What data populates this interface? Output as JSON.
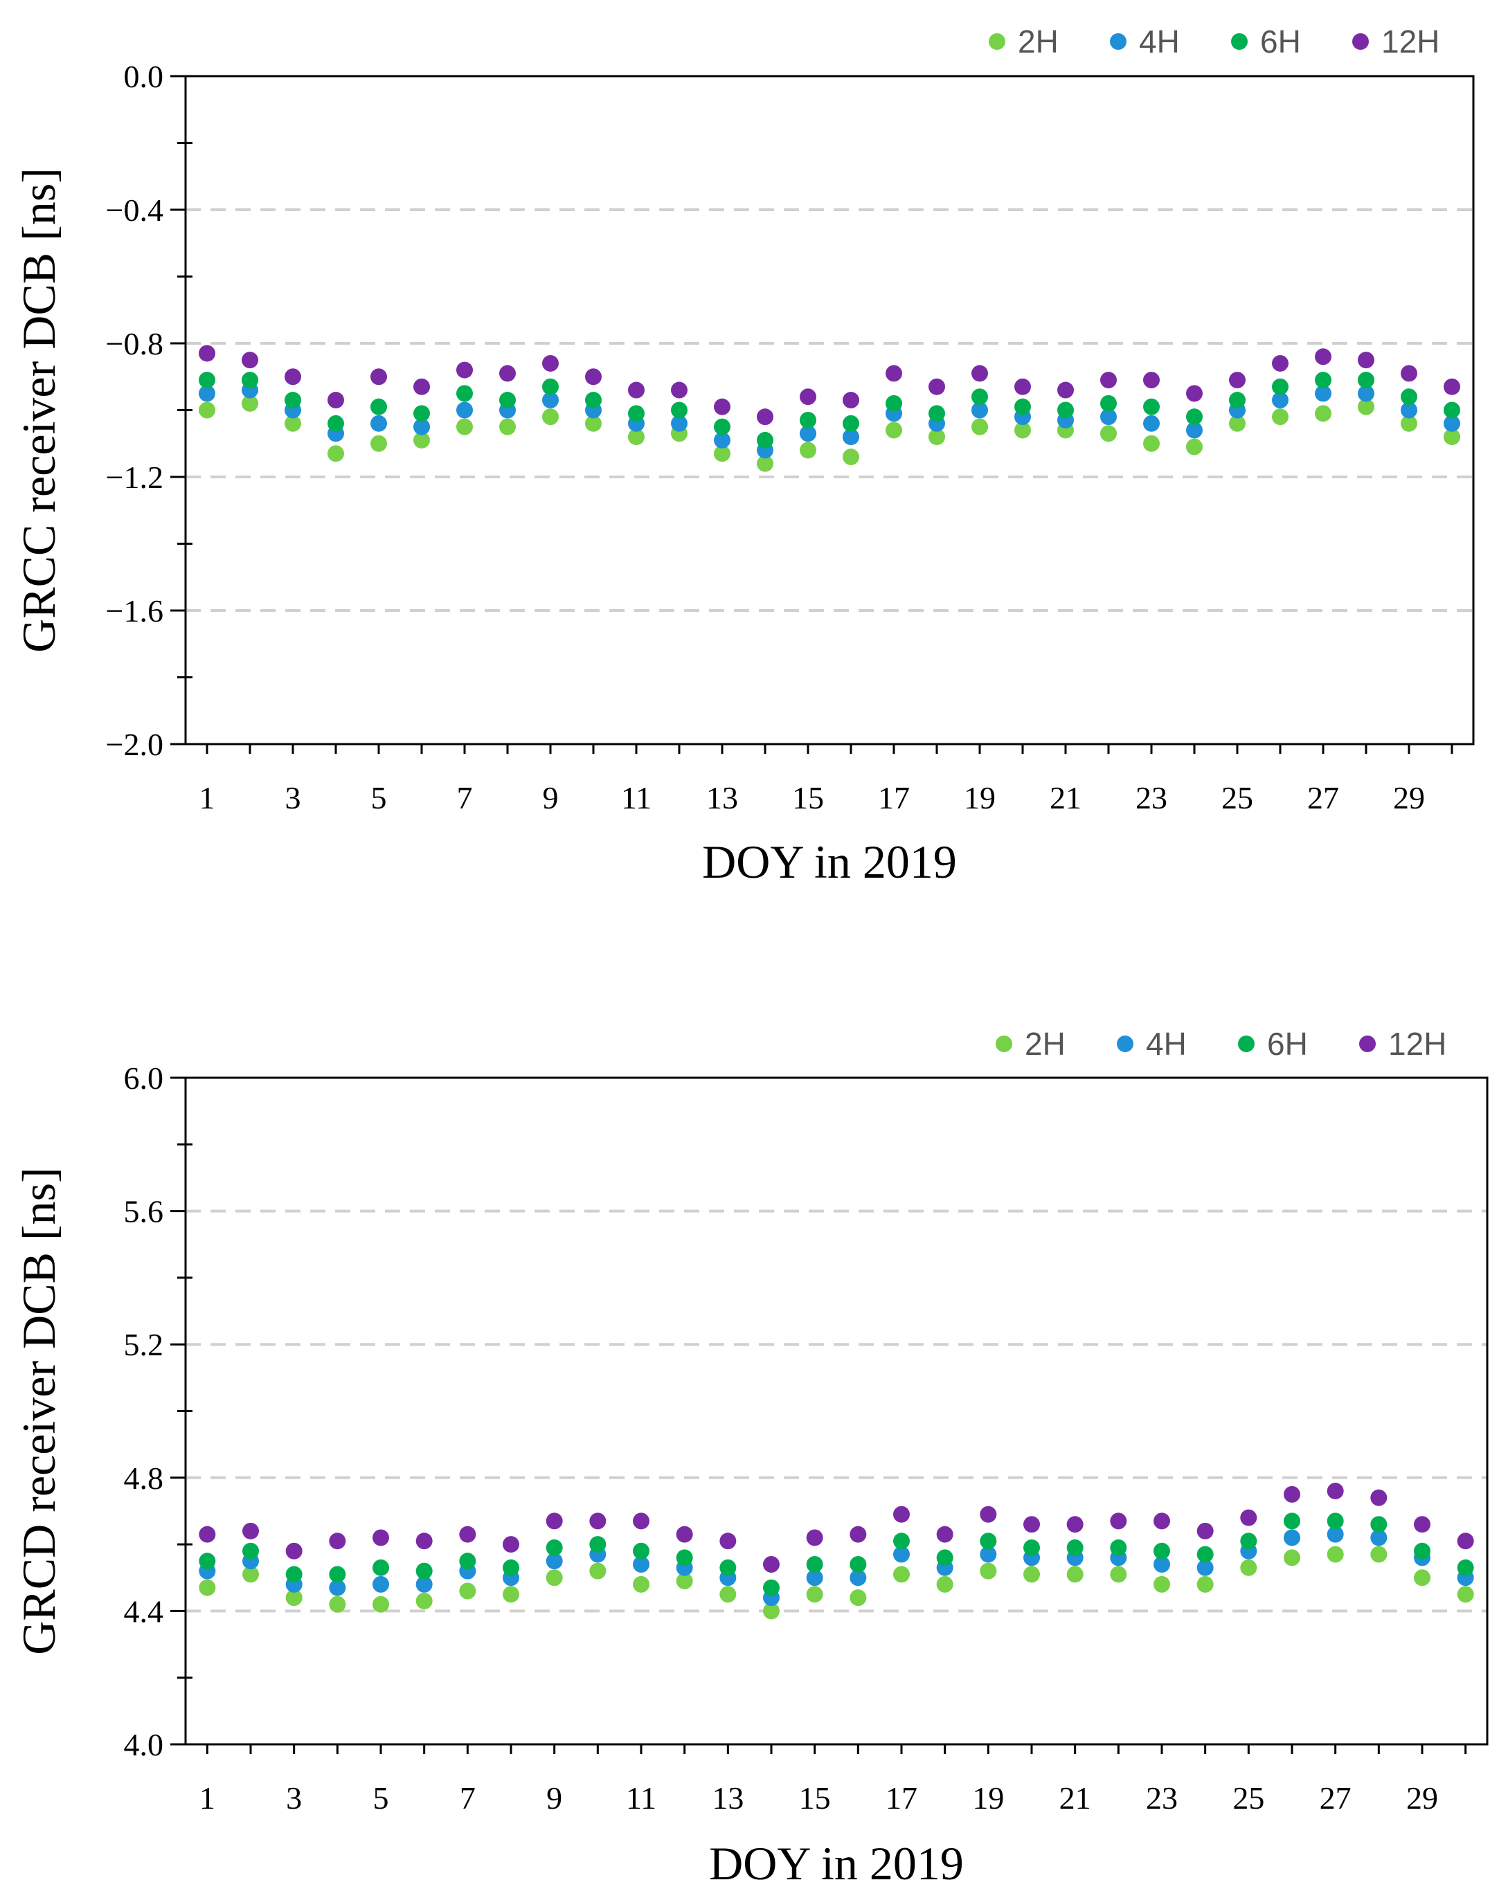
{
  "colors": {
    "2H": "#76d146",
    "4H": "#1f8fd8",
    "6H": "#00b050",
    "12H": "#7b2aa6",
    "grid": "#d0d0d0"
  },
  "chart_data": [
    {
      "type": "scatter",
      "ylabel": "GRCC receiver  DCB [ns]",
      "xlabel": "DOY in 2019",
      "ylim": [
        -2.0,
        0.0
      ],
      "yticks": [
        0.0,
        -0.4,
        -0.8,
        -1.2,
        -1.6,
        -2.0
      ],
      "ytick_labels": [
        "0.0",
        "−0.4",
        "−0.8",
        "−1.2",
        "−1.6",
        "−2.0"
      ],
      "grid_values": [
        -0.4,
        -0.8,
        -1.2,
        -1.6
      ],
      "xlim": [
        0.5,
        30.5
      ],
      "xticks": [
        1,
        3,
        5,
        7,
        9,
        11,
        13,
        15,
        17,
        19,
        21,
        23,
        25,
        27,
        29
      ],
      "xtick_labels": [
        "1",
        "3",
        "5",
        "7",
        "9",
        "11",
        "13",
        "15",
        "17",
        "19",
        "21",
        "23",
        "25",
        "27",
        "29"
      ],
      "legend_position": "top-right",
      "x": [
        1,
        2,
        3,
        4,
        5,
        6,
        7,
        8,
        9,
        10,
        11,
        12,
        13,
        14,
        15,
        16,
        17,
        18,
        19,
        20,
        21,
        22,
        23,
        24,
        25,
        26,
        27,
        28,
        29,
        30
      ],
      "series": [
        {
          "name": "2H",
          "values": [
            -1.0,
            -0.98,
            -1.04,
            -1.13,
            -1.1,
            -1.09,
            -1.05,
            -1.05,
            -1.02,
            -1.04,
            -1.08,
            -1.07,
            -1.13,
            -1.16,
            -1.12,
            -1.14,
            -1.06,
            -1.08,
            -1.05,
            -1.06,
            -1.06,
            -1.07,
            -1.1,
            -1.11,
            -1.04,
            -1.02,
            -1.01,
            -0.99,
            -1.04,
            -1.08
          ]
        },
        {
          "name": "4H",
          "values": [
            -0.95,
            -0.94,
            -1.0,
            -1.07,
            -1.04,
            -1.05,
            -1.0,
            -1.0,
            -0.97,
            -1.0,
            -1.04,
            -1.04,
            -1.09,
            -1.12,
            -1.07,
            -1.08,
            -1.01,
            -1.04,
            -1.0,
            -1.02,
            -1.03,
            -1.02,
            -1.04,
            -1.06,
            -1.0,
            -0.97,
            -0.95,
            -0.95,
            -1.0,
            -1.04
          ]
        },
        {
          "name": "6H",
          "values": [
            -0.91,
            -0.91,
            -0.97,
            -1.04,
            -0.99,
            -1.01,
            -0.95,
            -0.97,
            -0.93,
            -0.97,
            -1.01,
            -1.0,
            -1.05,
            -1.09,
            -1.03,
            -1.04,
            -0.98,
            -1.01,
            -0.96,
            -0.99,
            -1.0,
            -0.98,
            -0.99,
            -1.02,
            -0.97,
            -0.93,
            -0.91,
            -0.91,
            -0.96,
            -1.0
          ]
        },
        {
          "name": "12H",
          "values": [
            -0.83,
            -0.85,
            -0.9,
            -0.97,
            -0.9,
            -0.93,
            -0.88,
            -0.89,
            -0.86,
            -0.9,
            -0.94,
            -0.94,
            -0.99,
            -1.02,
            -0.96,
            -0.97,
            -0.89,
            -0.93,
            -0.89,
            -0.93,
            -0.94,
            -0.91,
            -0.91,
            -0.95,
            -0.91,
            -0.86,
            -0.84,
            -0.85,
            -0.89,
            -0.93
          ]
        }
      ]
    },
    {
      "type": "scatter",
      "ylabel": "GRCD receiver  DCB [ns]",
      "xlabel": "DOY in 2019",
      "ylim": [
        4.0,
        6.0
      ],
      "yticks": [
        6.0,
        5.6,
        5.2,
        4.8,
        4.4,
        4.0
      ],
      "ytick_labels": [
        "6.0",
        "5.6",
        "5.2",
        "4.8",
        "4.4",
        "4.0"
      ],
      "grid_values": [
        5.6,
        5.2,
        4.8,
        4.4
      ],
      "xlim": [
        0.5,
        30.5
      ],
      "xticks": [
        1,
        3,
        5,
        7,
        9,
        11,
        13,
        15,
        17,
        19,
        21,
        23,
        25,
        27,
        29
      ],
      "xtick_labels": [
        "1",
        "3",
        "5",
        "7",
        "9",
        "11",
        "13",
        "15",
        "17",
        "19",
        "21",
        "23",
        "25",
        "27",
        "29"
      ],
      "legend_position": "top-right",
      "x": [
        1,
        2,
        3,
        4,
        5,
        6,
        7,
        8,
        9,
        10,
        11,
        12,
        13,
        14,
        15,
        16,
        17,
        18,
        19,
        20,
        21,
        22,
        23,
        24,
        25,
        26,
        27,
        28,
        29,
        30
      ],
      "series": [
        {
          "name": "2H",
          "values": [
            4.47,
            4.51,
            4.44,
            4.42,
            4.42,
            4.43,
            4.46,
            4.45,
            4.5,
            4.52,
            4.48,
            4.49,
            4.45,
            4.4,
            4.45,
            4.44,
            4.51,
            4.48,
            4.52,
            4.51,
            4.51,
            4.51,
            4.48,
            4.48,
            4.53,
            4.56,
            4.57,
            4.57,
            4.5,
            4.45
          ]
        },
        {
          "name": "4H",
          "values": [
            4.52,
            4.55,
            4.48,
            4.47,
            4.48,
            4.48,
            4.52,
            4.5,
            4.55,
            4.57,
            4.54,
            4.53,
            4.5,
            4.44,
            4.5,
            4.5,
            4.57,
            4.53,
            4.57,
            4.56,
            4.56,
            4.56,
            4.54,
            4.53,
            4.58,
            4.62,
            4.63,
            4.62,
            4.56,
            4.5
          ]
        },
        {
          "name": "6H",
          "values": [
            4.55,
            4.58,
            4.51,
            4.51,
            4.53,
            4.52,
            4.55,
            4.53,
            4.59,
            4.6,
            4.58,
            4.56,
            4.53,
            4.47,
            4.54,
            4.54,
            4.61,
            4.56,
            4.61,
            4.59,
            4.59,
            4.59,
            4.58,
            4.57,
            4.61,
            4.67,
            4.67,
            4.66,
            4.58,
            4.53
          ]
        },
        {
          "name": "12H",
          "values": [
            4.63,
            4.64,
            4.58,
            4.61,
            4.62,
            4.61,
            4.63,
            4.6,
            4.67,
            4.67,
            4.67,
            4.63,
            4.61,
            4.54,
            4.62,
            4.63,
            4.69,
            4.63,
            4.69,
            4.66,
            4.66,
            4.67,
            4.67,
            4.64,
            4.68,
            4.75,
            4.76,
            4.74,
            4.66,
            4.61
          ]
        }
      ]
    }
  ]
}
